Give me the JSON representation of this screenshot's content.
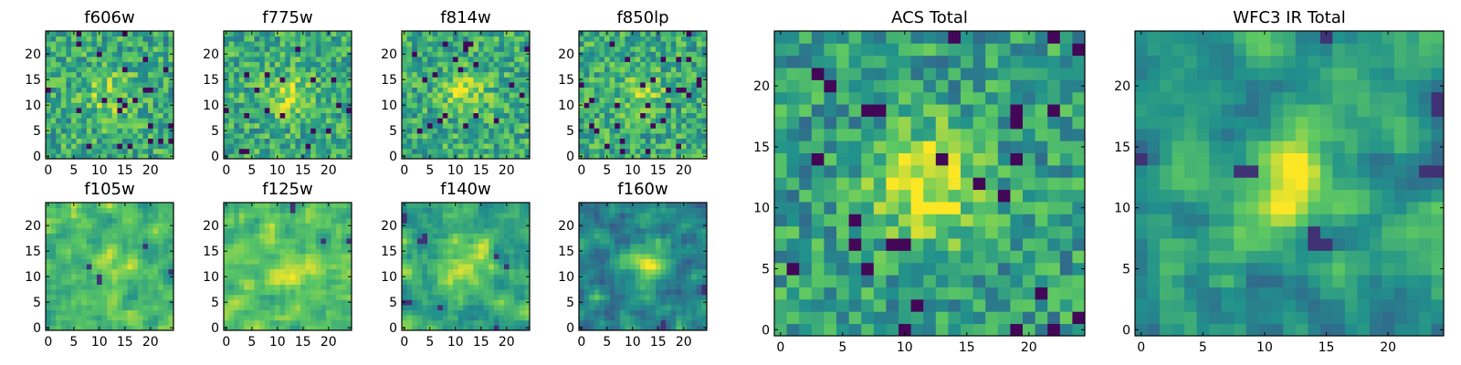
{
  "colors": {
    "background": "#ffffff",
    "colormap": "viridis",
    "viridis_stops": [
      "#440154",
      "#3b528b",
      "#21918c",
      "#5ec962",
      "#fde725"
    ]
  },
  "chart_data": [
    {
      "type": "heatmap",
      "title": "f606w",
      "xlim": [
        0,
        24
      ],
      "ylim": [
        0,
        24
      ],
      "xticks": [
        "0",
        "5",
        "10",
        "15",
        "20"
      ],
      "yticks": [
        "0",
        "5",
        "10",
        "15",
        "20"
      ],
      "grid_size": [
        25,
        25
      ],
      "source_center": [
        12,
        12
      ],
      "value_range": [
        0,
        1
      ],
      "typical_level": 0.6,
      "peak_level": 0.85,
      "noise_pattern": "fine pixel-scale noise with scattered dark pixels"
    },
    {
      "type": "heatmap",
      "title": "f775w",
      "xlim": [
        0,
        24
      ],
      "ylim": [
        0,
        24
      ],
      "xticks": [
        "0",
        "5",
        "10",
        "15",
        "20"
      ],
      "yticks": [
        "0",
        "5",
        "10",
        "15",
        "20"
      ],
      "grid_size": [
        25,
        25
      ],
      "source_center": [
        12,
        12
      ],
      "value_range": [
        0,
        1
      ],
      "typical_level": 0.6,
      "peak_level": 0.85,
      "noise_pattern": "fine pixel-scale noise with scattered dark pixels"
    },
    {
      "type": "heatmap",
      "title": "f814w",
      "xlim": [
        0,
        24
      ],
      "ylim": [
        0,
        24
      ],
      "xticks": [
        "0",
        "5",
        "10",
        "15",
        "20"
      ],
      "yticks": [
        "0",
        "5",
        "10",
        "15",
        "20"
      ],
      "grid_size": [
        25,
        25
      ],
      "source_center": [
        12,
        12
      ],
      "value_range": [
        0,
        1
      ],
      "typical_level": 0.6,
      "peak_level": 0.85,
      "noise_pattern": "fine pixel-scale noise with scattered dark pixels"
    },
    {
      "type": "heatmap",
      "title": "f850lp",
      "xlim": [
        0,
        24
      ],
      "ylim": [
        0,
        24
      ],
      "xticks": [
        "0",
        "5",
        "10",
        "15",
        "20"
      ],
      "yticks": [
        "0",
        "5",
        "10",
        "15",
        "20"
      ],
      "grid_size": [
        25,
        25
      ],
      "source_center": [
        12,
        12
      ],
      "value_range": [
        0,
        1
      ],
      "typical_level": 0.6,
      "peak_level": 0.8,
      "noise_pattern": "fine pixel-scale noise with scattered dark pixels"
    },
    {
      "type": "heatmap",
      "title": "f105w",
      "xlim": [
        0,
        24
      ],
      "ylim": [
        0,
        24
      ],
      "xticks": [
        "0",
        "5",
        "10",
        "15",
        "20"
      ],
      "yticks": [
        "0",
        "5",
        "10",
        "15",
        "20"
      ],
      "grid_size": [
        25,
        25
      ],
      "source_center": [
        12,
        12
      ],
      "value_range": [
        0,
        1
      ],
      "typical_level": 0.65,
      "peak_level": 0.9,
      "noise_pattern": "smoothed correlated noise, darker toward right edge"
    },
    {
      "type": "heatmap",
      "title": "f125w",
      "xlim": [
        0,
        24
      ],
      "ylim": [
        0,
        24
      ],
      "xticks": [
        "0",
        "5",
        "10",
        "15",
        "20"
      ],
      "yticks": [
        "0",
        "5",
        "10",
        "15",
        "20"
      ],
      "grid_size": [
        25,
        25
      ],
      "source_center": [
        12,
        12
      ],
      "value_range": [
        0,
        1
      ],
      "typical_level": 0.7,
      "peak_level": 0.9,
      "noise_pattern": "smoothed correlated noise with a few dark pixels"
    },
    {
      "type": "heatmap",
      "title": "f140w",
      "xlim": [
        0,
        24
      ],
      "ylim": [
        0,
        24
      ],
      "xticks": [
        "0",
        "5",
        "10",
        "15",
        "20"
      ],
      "yticks": [
        "0",
        "5",
        "10",
        "15",
        "20"
      ],
      "grid_size": [
        25,
        25
      ],
      "source_center": [
        12,
        12
      ],
      "value_range": [
        0,
        1
      ],
      "typical_level": 0.6,
      "peak_level": 0.9,
      "noise_pattern": "smoothed correlated noise with dark patches"
    },
    {
      "type": "heatmap",
      "title": "f160w",
      "xlim": [
        0,
        24
      ],
      "ylim": [
        0,
        24
      ],
      "xticks": [
        "0",
        "5",
        "10",
        "15",
        "20"
      ],
      "yticks": [
        "0",
        "5",
        "10",
        "15",
        "20"
      ],
      "grid_size": [
        25,
        25
      ],
      "source_center": [
        13,
        13
      ],
      "value_range": [
        0,
        1
      ],
      "typical_level": 0.45,
      "peak_level": 0.85,
      "noise_pattern": "smoothed correlated noise, darker overall, bright lower-left corner"
    },
    {
      "type": "heatmap",
      "title": "ACS Total",
      "xlim": [
        0,
        24
      ],
      "ylim": [
        0,
        24
      ],
      "xticks": [
        "0",
        "5",
        "10",
        "15",
        "20"
      ],
      "yticks": [
        "0",
        "5",
        "10",
        "15",
        "20"
      ],
      "grid_size": [
        25,
        25
      ],
      "source_center": [
        12,
        12
      ],
      "value_range": [
        0,
        1
      ],
      "typical_level": 0.55,
      "peak_level": 1.0,
      "noise_pattern": "pixel noise with bright compact source near center"
    },
    {
      "type": "heatmap",
      "title": "WFC3 IR Total",
      "xlim": [
        0,
        24
      ],
      "ylim": [
        0,
        24
      ],
      "xticks": [
        "0",
        "5",
        "10",
        "15",
        "20"
      ],
      "yticks": [
        "0",
        "5",
        "10",
        "15",
        "20"
      ],
      "grid_size": [
        25,
        25
      ],
      "source_center": [
        12,
        12
      ],
      "value_range": [
        0,
        1
      ],
      "typical_level": 0.5,
      "peak_level": 1.0,
      "noise_pattern": "correlated noise with extended bright source near center"
    }
  ]
}
